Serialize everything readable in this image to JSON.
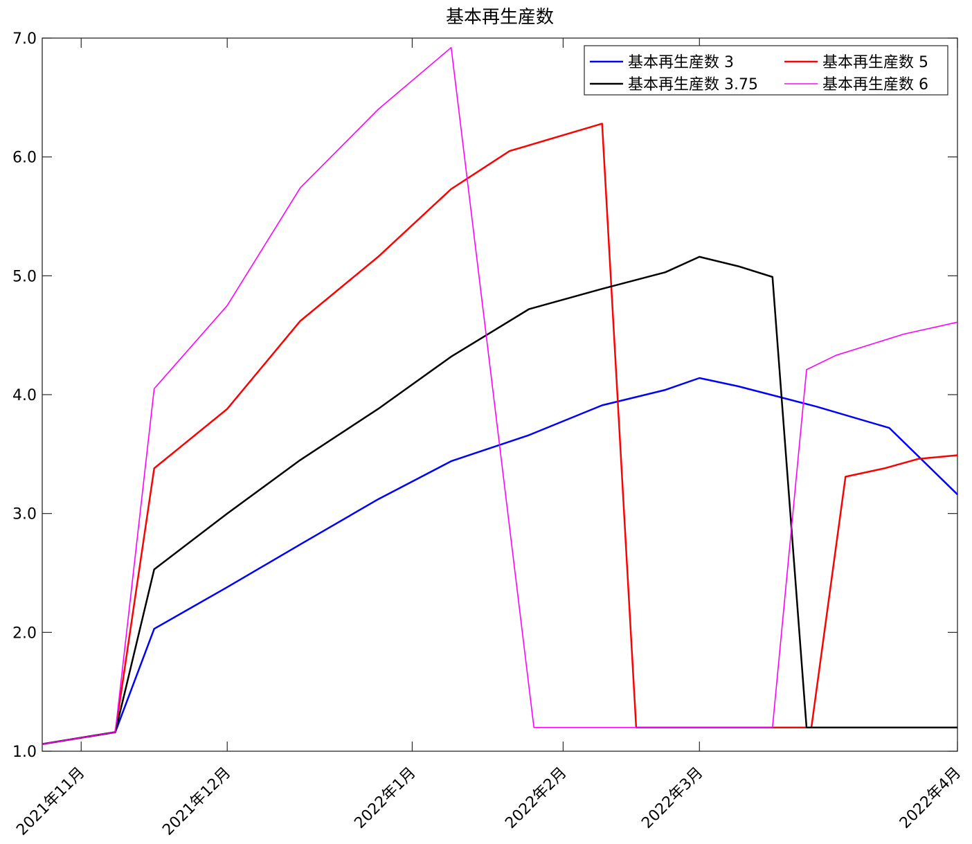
{
  "chart_data": {
    "type": "line",
    "title": "基本再生産数",
    "xlabel": "",
    "ylabel": "",
    "x_start": "2021-10-24",
    "x_end": "2022-04-30",
    "ylim": [
      1.0,
      7.0
    ],
    "y_ticks": [
      "1.0",
      "2.0",
      "3.0",
      "4.0",
      "5.0",
      "6.0",
      "7.0"
    ],
    "x_ticks": [
      {
        "date": "2021-11-01",
        "label": "2021年11月"
      },
      {
        "date": "2021-12-01",
        "label": "2021年12月"
      },
      {
        "date": "2022-01-08",
        "label": "2022年1月"
      },
      {
        "date": "2022-02-08",
        "label": "2022年2月"
      },
      {
        "date": "2022-03-08",
        "label": "2022年3月"
      },
      {
        "date": "2022-04-30",
        "label": "2022年4月"
      }
    ],
    "grid": false,
    "legend_position": "top-right",
    "legend_columns": 2,
    "series": [
      {
        "name": "基本再生産数 3",
        "color": "#0000ff",
        "stroke": 2.5,
        "points": [
          [
            "2021-10-24",
            1.06
          ],
          [
            "2021-11-08",
            1.16
          ],
          [
            "2021-11-16",
            2.03
          ],
          [
            "2021-12-01",
            2.38
          ],
          [
            "2021-12-16",
            2.74
          ],
          [
            "2022-01-01",
            3.12
          ],
          [
            "2022-01-16",
            3.44
          ],
          [
            "2022-02-01",
            3.66
          ],
          [
            "2022-02-16",
            3.91
          ],
          [
            "2022-03-01",
            4.04
          ],
          [
            "2022-03-08",
            4.14
          ],
          [
            "2022-03-16",
            4.07
          ],
          [
            "2022-04-01",
            3.9
          ],
          [
            "2022-04-16",
            3.72
          ],
          [
            "2022-04-30",
            3.16
          ]
        ]
      },
      {
        "name": "基本再生産数 5",
        "color": "#ff0000",
        "stroke": 2.5,
        "points": [
          [
            "2021-10-24",
            1.06
          ],
          [
            "2021-11-08",
            1.16
          ],
          [
            "2021-11-16",
            3.38
          ],
          [
            "2021-12-01",
            3.88
          ],
          [
            "2021-12-16",
            4.62
          ],
          [
            "2022-01-01",
            5.16
          ],
          [
            "2022-01-16",
            5.73
          ],
          [
            "2022-01-28",
            6.05
          ],
          [
            "2022-02-16",
            6.28
          ],
          [
            "2022-02-23",
            1.2
          ],
          [
            "2022-03-15",
            1.2
          ],
          [
            "2022-03-31",
            1.2
          ],
          [
            "2022-04-07",
            3.31
          ],
          [
            "2022-04-15",
            3.38
          ],
          [
            "2022-04-22",
            3.46
          ],
          [
            "2022-04-30",
            3.49
          ]
        ]
      },
      {
        "name": "基本再生産数 3.75",
        "color": "#000000",
        "stroke": 2.5,
        "points": [
          [
            "2021-10-24",
            1.06
          ],
          [
            "2021-11-08",
            1.16
          ],
          [
            "2021-11-16",
            2.53
          ],
          [
            "2021-12-01",
            3.0
          ],
          [
            "2021-12-16",
            3.45
          ],
          [
            "2022-01-01",
            3.88
          ],
          [
            "2022-01-16",
            4.32
          ],
          [
            "2022-02-01",
            4.72
          ],
          [
            "2022-02-16",
            4.89
          ],
          [
            "2022-03-01",
            5.03
          ],
          [
            "2022-03-08",
            5.16
          ],
          [
            "2022-03-16",
            5.08
          ],
          [
            "2022-03-23",
            4.99
          ],
          [
            "2022-03-30",
            1.2
          ],
          [
            "2022-04-15",
            1.2
          ],
          [
            "2022-04-30",
            1.2
          ]
        ]
      },
      {
        "name": "基本再生産数 6",
        "color": "#ff00ff",
        "stroke": 1.6,
        "points": [
          [
            "2021-10-24",
            1.06
          ],
          [
            "2021-11-08",
            1.16
          ],
          [
            "2021-11-16",
            4.05
          ],
          [
            "2021-12-01",
            4.75
          ],
          [
            "2021-12-16",
            5.74
          ],
          [
            "2022-01-01",
            6.4
          ],
          [
            "2022-01-16",
            6.92
          ],
          [
            "2022-02-02",
            1.2
          ],
          [
            "2022-03-01",
            1.2
          ],
          [
            "2022-03-23",
            1.2
          ],
          [
            "2022-03-30",
            4.21
          ],
          [
            "2022-04-05",
            4.33
          ],
          [
            "2022-04-12",
            4.42
          ],
          [
            "2022-04-19",
            4.51
          ],
          [
            "2022-04-30",
            4.61
          ]
        ]
      }
    ]
  }
}
